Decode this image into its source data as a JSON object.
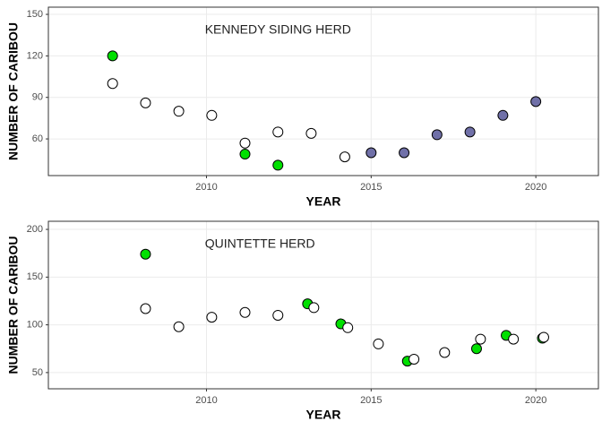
{
  "chart_data": [
    {
      "type": "scatter",
      "annotation": "KENNEDY SIDING HERD",
      "x_label": "YEAR",
      "y_label": "NUMBER OF CARIBOU",
      "xlim": [
        2005.2,
        2021.9
      ],
      "ylim": [
        33.5,
        155.2
      ],
      "xticks": [
        2010,
        2015,
        2020
      ],
      "yticks": [
        60,
        90,
        120,
        150
      ],
      "grid": true,
      "series": [
        {
          "color": "#00e000",
          "x": [
            2007.15,
            2011.17,
            2012.17
          ],
          "values": [
            120,
            49,
            41
          ]
        },
        {
          "color": "#ffffff",
          "x": [
            2007.15,
            2008.15,
            2009.16,
            2010.16,
            2011.17,
            2012.17,
            2013.18,
            2014.2
          ],
          "values": [
            100,
            86,
            80,
            77,
            57,
            65,
            64,
            47
          ]
        },
        {
          "color": "#7070a8",
          "x": [
            2015,
            2016,
            2017,
            2018,
            2019,
            2020
          ],
          "values": [
            50,
            50,
            63,
            65,
            77,
            87
          ]
        }
      ]
    },
    {
      "type": "scatter",
      "annotation": "QUINTETTE HERD",
      "x_label": "YEAR",
      "y_label": "NUMBER OF CARIBOU",
      "xlim": [
        2005.2,
        2021.9
      ],
      "ylim": [
        33,
        208.5
      ],
      "xticks": [
        2010,
        2015,
        2020
      ],
      "yticks": [
        50,
        100,
        150,
        200
      ],
      "grid": true,
      "series": [
        {
          "color": "#00e000",
          "x": [
            2008.15,
            2013.07,
            2014.08,
            2016.1,
            2018.2,
            2019.1,
            2020.2
          ],
          "values": [
            174,
            122,
            101,
            62,
            75,
            89,
            86
          ]
        },
        {
          "color": "#ffffff",
          "x": [
            2008.15,
            2009.16,
            2010.16,
            2011.17,
            2012.17,
            2013.26,
            2014.29,
            2015.22,
            2016.3,
            2017.23,
            2018.32,
            2019.32,
            2020.24
          ],
          "values": [
            117,
            98,
            108,
            113,
            110,
            118,
            97,
            80,
            64,
            71,
            85,
            85,
            87
          ]
        }
      ]
    }
  ]
}
